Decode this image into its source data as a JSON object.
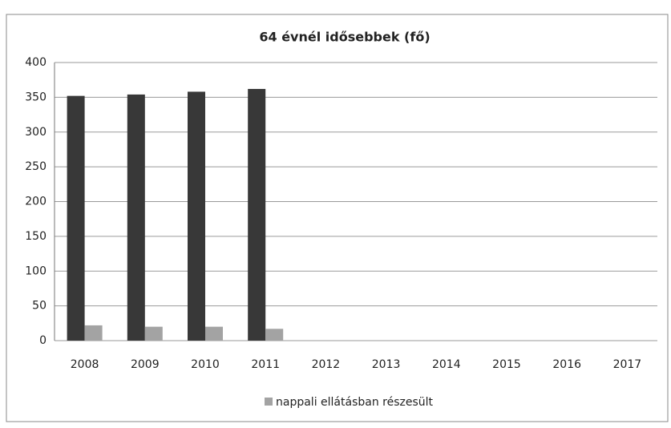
{
  "chart_data": {
    "type": "bar",
    "title": "64 évnél idősebbek (fő)",
    "categories": [
      "2008",
      "2009",
      "2010",
      "2011",
      "2012",
      "2013",
      "2014",
      "2015",
      "2016",
      "2017"
    ],
    "series": [
      {
        "color": "#383838",
        "values": [
          352,
          354,
          358,
          362,
          null,
          null,
          null,
          null,
          null,
          null
        ]
      },
      {
        "name": "nappali ellátásban részesült",
        "color": "#a3a3a3",
        "values": [
          22,
          20,
          20,
          17,
          null,
          null,
          null,
          null,
          null,
          null
        ]
      }
    ],
    "ylim": [
      0,
      400
    ],
    "yticks": [
      0,
      50,
      100,
      150,
      200,
      250,
      300,
      350,
      400
    ],
    "grid": true,
    "legend": "bottom"
  }
}
